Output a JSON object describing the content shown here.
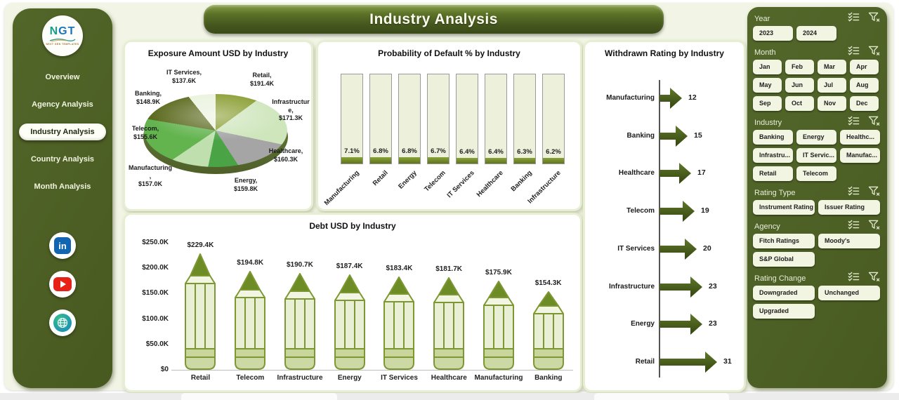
{
  "header": {
    "title": "Industry Analysis"
  },
  "sidebar": {
    "logo": {
      "text": "NGT",
      "subtext": "NEXT GEN TEMPLATES"
    },
    "items": [
      {
        "label": "Overview",
        "active": false
      },
      {
        "label": "Agency Analysis",
        "active": false
      },
      {
        "label": "Industry Analysis",
        "active": true
      },
      {
        "label": "Country Analysis",
        "active": false
      },
      {
        "label": "Month Analysis",
        "active": false
      }
    ],
    "social": [
      {
        "name": "linkedin",
        "glyph": "in"
      },
      {
        "name": "youtube"
      },
      {
        "name": "website"
      }
    ]
  },
  "chart_data": [
    {
      "type": "pie",
      "title": "Exposure Amount USD by Industry",
      "slices": [
        {
          "name": "Retail",
          "value_k": 191.4,
          "label": "$191.4K",
          "color": "#8a9e33"
        },
        {
          "name": "Infrastructure",
          "value_k": 171.3,
          "label": "$171.3K",
          "color": "#cfe6bd"
        },
        {
          "name": "Healthcare",
          "value_k": 160.3,
          "label": "$160.3K",
          "color": "#a5a5a5"
        },
        {
          "name": "Energy",
          "value_k": 159.8,
          "label": "$159.8K",
          "color": "#4aa446"
        },
        {
          "name": "Manufacturing",
          "value_k": 157.0,
          "label": "$157.0K",
          "color": "#bfdfae"
        },
        {
          "name": "Telecom",
          "value_k": 155.6,
          "label": "$155.6K",
          "color": "#63b44f"
        },
        {
          "name": "Banking",
          "value_k": 148.9,
          "label": "$148.9K",
          "color": "#5d6b20"
        },
        {
          "name": "IT Services",
          "value_k": 137.6,
          "label": "$137.6K",
          "color": "#eaf3de"
        }
      ]
    },
    {
      "type": "bar",
      "title": "Probability of Default % by Industry",
      "categories": [
        "Manufacturing",
        "Retail",
        "Energy",
        "Telecom",
        "IT Services",
        "Healthcare",
        "Banking",
        "Infrastructure"
      ],
      "values": [
        7.1,
        6.8,
        6.8,
        6.7,
        6.4,
        6.4,
        6.3,
        6.2
      ],
      "labels": [
        "7.1%",
        "6.8%",
        "6.8%",
        "6.7%",
        "6.4%",
        "6.4%",
        "6.3%",
        "6.2%"
      ],
      "ylim": [
        0,
        100
      ]
    },
    {
      "type": "bar",
      "title": "Debt USD by Industry",
      "categories": [
        "Retail",
        "Telecom",
        "Infrastructure",
        "Energy",
        "IT Services",
        "Healthcare",
        "Manufacturing",
        "Banking"
      ],
      "values_k": [
        229.4,
        194.8,
        190.7,
        187.4,
        183.4,
        181.7,
        175.9,
        154.3
      ],
      "labels": [
        "$229.4K",
        "$194.8K",
        "$190.7K",
        "$187.4K",
        "$183.4K",
        "$181.7K",
        "$175.9K",
        "$154.3K"
      ],
      "yticks": [
        {
          "v": 0,
          "label": "$0"
        },
        {
          "v": 50,
          "label": "$50.0K"
        },
        {
          "v": 100,
          "label": "$100.0K"
        },
        {
          "v": 150,
          "label": "$150.0K"
        },
        {
          "v": 200,
          "label": "$200.0K"
        },
        {
          "v": 250,
          "label": "$250.0K"
        }
      ],
      "ylim": [
        0,
        250
      ]
    },
    {
      "type": "bar",
      "title": "Withdrawn Rating by Industry",
      "categories": [
        "Manufacturing",
        "Banking",
        "Healthcare",
        "Telecom",
        "IT Services",
        "Infrastructure",
        "Energy",
        "Retail"
      ],
      "values": [
        12,
        15,
        17,
        19,
        20,
        23,
        23,
        31
      ]
    }
  ],
  "filters": [
    {
      "id": "year",
      "label": "Year",
      "cols": "year",
      "options": [
        "2023",
        "2024"
      ]
    },
    {
      "id": "month",
      "label": "Month",
      "cols": "4",
      "options": [
        "Jan",
        "Feb",
        "Mar",
        "Apr",
        "May",
        "Jun",
        "Jul",
        "Aug",
        "Sep",
        "Oct",
        "Nov",
        "Dec"
      ]
    },
    {
      "id": "industry",
      "label": "Industry",
      "cols": "3",
      "options": [
        "Banking",
        "Energy",
        "Healthc...",
        "Infrastru...",
        "IT Servic...",
        "Manufac...",
        "Retail",
        "Telecom"
      ]
    },
    {
      "id": "rating-type",
      "label": "Rating Type",
      "cols": "2",
      "options": [
        "Instrument Rating",
        "Issuer Rating"
      ]
    },
    {
      "id": "agency",
      "label": "Agency",
      "cols": "2",
      "options": [
        "Fitch Ratings",
        "Moody's",
        "S&P Global"
      ]
    },
    {
      "id": "rating-change",
      "label": "Rating Change",
      "cols": "2",
      "options": [
        "Downgraded",
        "Unchanged",
        "Upgraded"
      ]
    }
  ]
}
